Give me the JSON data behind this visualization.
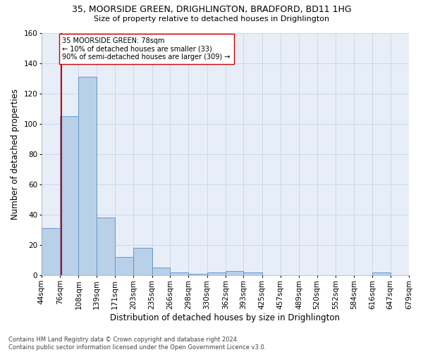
{
  "title_line1": "35, MOORSIDE GREEN, DRIGHLINGTON, BRADFORD, BD11 1HG",
  "title_line2": "Size of property relative to detached houses in Drighlington",
  "xlabel": "Distribution of detached houses by size in Drighlington",
  "ylabel": "Number of detached properties",
  "bar_color": "#b8d0e8",
  "bar_edge_color": "#6699cc",
  "grid_color": "#c8d4e8",
  "background_color": "#e8eef8",
  "bin_edges": [
    44,
    76,
    108,
    139,
    171,
    203,
    235,
    266,
    298,
    330,
    362,
    393,
    425,
    457,
    489,
    520,
    552,
    584,
    616,
    647,
    679
  ],
  "bar_heights": [
    31,
    105,
    131,
    38,
    12,
    18,
    5,
    2,
    1,
    2,
    3,
    2,
    0,
    0,
    0,
    0,
    0,
    0,
    2,
    0
  ],
  "property_size": 78,
  "property_line_color": "#cc0000",
  "annotation_text": "35 MOORSIDE GREEN: 78sqm\n← 10% of detached houses are smaller (33)\n90% of semi-detached houses are larger (309) →",
  "annotation_box_color": "#ffffff",
  "annotation_box_edge_color": "#cc0000",
  "ylim": [
    0,
    160
  ],
  "yticks": [
    0,
    20,
    40,
    60,
    80,
    100,
    120,
    140,
    160
  ],
  "tick_label_fontsize": 7.5,
  "footnote": "Contains HM Land Registry data © Crown copyright and database right 2024.\nContains public sector information licensed under the Open Government Licence v3.0."
}
